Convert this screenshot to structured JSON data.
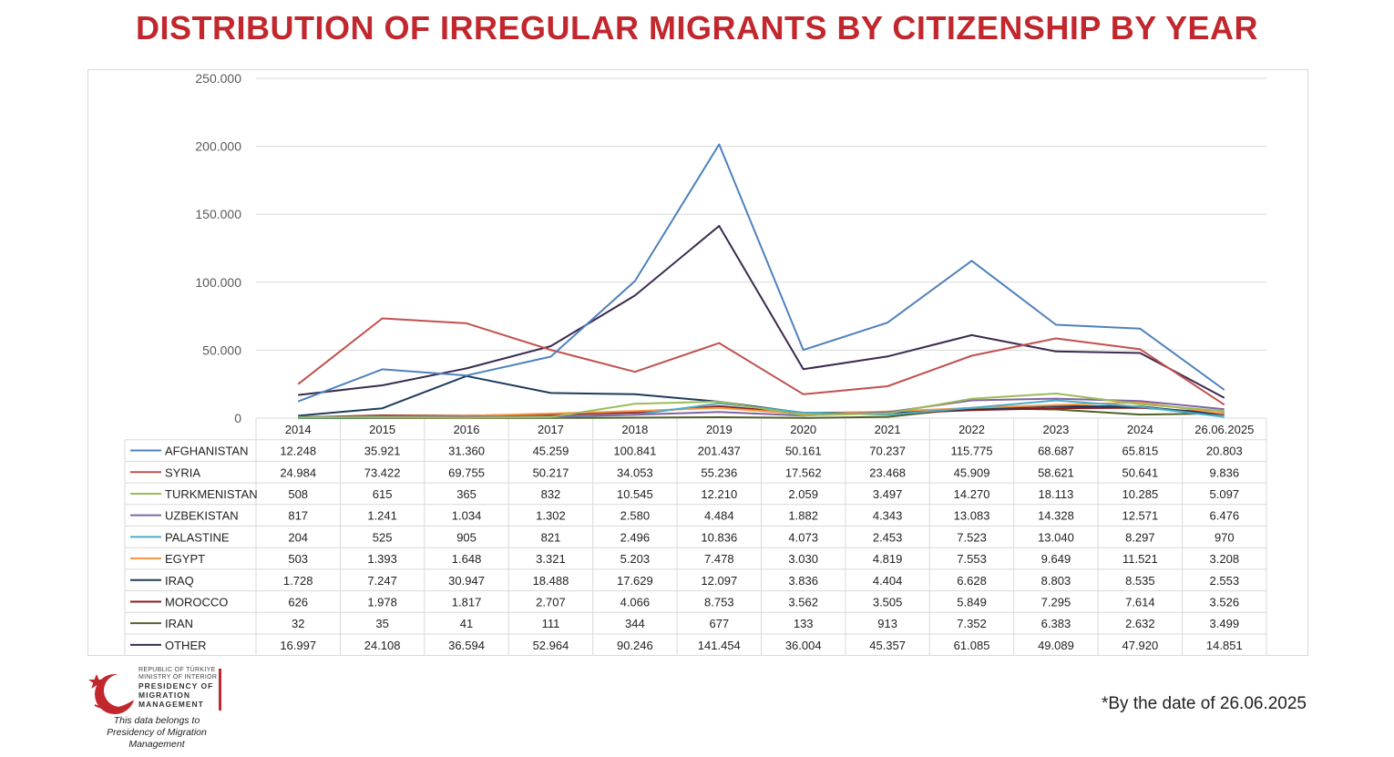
{
  "title": "DISTRIBUTION OF IRREGULAR MIGRANTS BY CITIZENSHIP BY YEAR",
  "footnote": "*By the date of 26.06.2025",
  "logo": {
    "line1": "REPUBLIC OF TÜRKIYE",
    "line2": "MINISTRY OF INTERIOR",
    "line3": "PRESIDENCY OF",
    "line4": "MIGRATION MANAGEMENT",
    "belongs1": "This data belongs to",
    "belongs2": "Presidency of Migration Management",
    "accent_color": "#c1272d"
  },
  "chart_data": {
    "type": "line",
    "title": "DISTRIBUTION OF IRREGULAR MIGRANTS BY CITIZENSHIP BY YEAR",
    "xlabel": "",
    "ylabel": "",
    "ylim": [
      0,
      250000
    ],
    "yticks": [
      "0",
      "50.000",
      "100.000",
      "150.000",
      "200.000",
      "250.000"
    ],
    "grid": true,
    "legend_placement": "data-table",
    "categories": [
      "2014",
      "2015",
      "2016",
      "2017",
      "2018",
      "2019",
      "2020",
      "2021",
      "2022",
      "2023",
      "2024",
      "26.06.2025"
    ],
    "series": [
      {
        "name": "AFGHANISTAN",
        "color": "#4f81bd",
        "values": [
          12248,
          35921,
          31360,
          45259,
          100841,
          201437,
          50161,
          70237,
          115775,
          68687,
          65815,
          20803
        ],
        "labels": [
          "12.248",
          "35.921",
          "31.360",
          "45.259",
          "100.841",
          "201.437",
          "50.161",
          "70.237",
          "115.775",
          "68.687",
          "65.815",
          "20.803"
        ]
      },
      {
        "name": "SYRIA",
        "color": "#c0504d",
        "values": [
          24984,
          73422,
          69755,
          50217,
          34053,
          55236,
          17562,
          23468,
          45909,
          58621,
          50641,
          9836
        ],
        "labels": [
          "24.984",
          "73.422",
          "69.755",
          "50.217",
          "34.053",
          "55.236",
          "17.562",
          "23.468",
          "45.909",
          "58.621",
          "50.641",
          "9.836"
        ]
      },
      {
        "name": "TURKMENISTAN",
        "color": "#9bbb59",
        "values": [
          508,
          615,
          365,
          832,
          10545,
          12210,
          2059,
          3497,
          14270,
          18113,
          10285,
          5097
        ],
        "labels": [
          "508",
          "615",
          "365",
          "832",
          "10.545",
          "12.210",
          "2.059",
          "3.497",
          "14.270",
          "18.113",
          "10.285",
          "5.097"
        ]
      },
      {
        "name": "UZBEKISTAN",
        "color": "#8064a2",
        "values": [
          817,
          1241,
          1034,
          1302,
          2580,
          4484,
          1882,
          4343,
          13083,
          14328,
          12571,
          6476
        ],
        "labels": [
          "817",
          "1.241",
          "1.034",
          "1.302",
          "2.580",
          "4.484",
          "1.882",
          "4.343",
          "13.083",
          "14.328",
          "12.571",
          "6.476"
        ]
      },
      {
        "name": "PALASTINE",
        "color": "#4bacc6",
        "values": [
          204,
          525,
          905,
          821,
          2496,
          10836,
          4073,
          2453,
          7523,
          13040,
          8297,
          970
        ],
        "labels": [
          "204",
          "525",
          "905",
          "821",
          "2.496",
          "10.836",
          "4.073",
          "2.453",
          "7.523",
          "13.040",
          "8.297",
          "970"
        ]
      },
      {
        "name": "EGYPT",
        "color": "#f79646",
        "values": [
          503,
          1393,
          1648,
          3321,
          5203,
          7478,
          3030,
          4819,
          7553,
          9649,
          11521,
          3208
        ],
        "labels": [
          "503",
          "1.393",
          "1.648",
          "3.321",
          "5.203",
          "7.478",
          "3.030",
          "4.819",
          "7.553",
          "9.649",
          "11.521",
          "3.208"
        ]
      },
      {
        "name": "IRAQ",
        "color": "#1f3b5c",
        "values": [
          1728,
          7247,
          30947,
          18488,
          17629,
          12097,
          3836,
          4404,
          6628,
          8803,
          8535,
          2553
        ],
        "labels": [
          "1.728",
          "7.247",
          "30.947",
          "18.488",
          "17.629",
          "12.097",
          "3.836",
          "4.404",
          "6.628",
          "8.803",
          "8.535",
          "2.553"
        ]
      },
      {
        "name": "MOROCCO",
        "color": "#8b1a1a",
        "values": [
          626,
          1978,
          1817,
          2707,
          4066,
          8753,
          3562,
          3505,
          5849,
          7295,
          7614,
          3526
        ],
        "labels": [
          "626",
          "1.978",
          "1.817",
          "2.707",
          "4.066",
          "8.753",
          "3.562",
          "3.505",
          "5.849",
          "7.295",
          "7.614",
          "3.526"
        ]
      },
      {
        "name": "IRAN",
        "color": "#4f6228",
        "values": [
          32,
          35,
          41,
          111,
          344,
          677,
          133,
          913,
          7352,
          6383,
          2632,
          3499
        ],
        "labels": [
          "32",
          "35",
          "41",
          "111",
          "344",
          "677",
          "133",
          "913",
          "7.352",
          "6.383",
          "2.632",
          "3.499"
        ]
      },
      {
        "name": "OTHER",
        "color": "#3b2a4e",
        "values": [
          16997,
          24108,
          36594,
          52964,
          90246,
          141454,
          36004,
          45357,
          61085,
          49089,
          47920,
          14851
        ],
        "labels": [
          "16.997",
          "24.108",
          "36.594",
          "52.964",
          "90.246",
          "141.454",
          "36.004",
          "45.357",
          "61.085",
          "49.089",
          "47.920",
          "14.851"
        ]
      }
    ]
  }
}
